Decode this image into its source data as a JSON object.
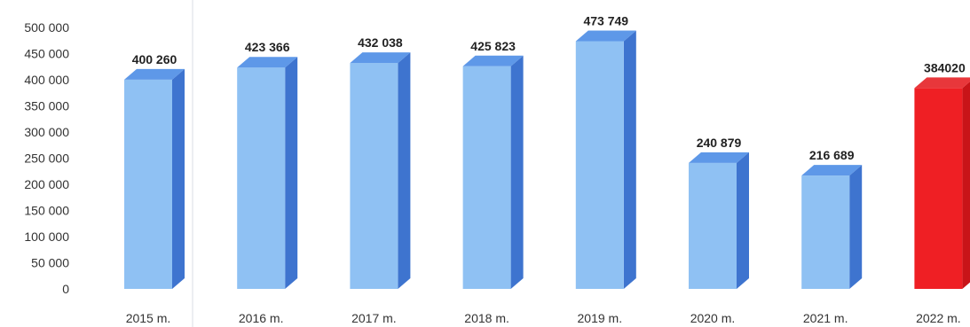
{
  "chart_data": {
    "type": "bar",
    "title": "",
    "xlabel": "",
    "ylabel": "",
    "categories": [
      "2015 m.",
      "2016 m.",
      "2017 m.",
      "2018 m.",
      "2019 m.",
      "2020 m.",
      "2021 m.",
      "2022 m."
    ],
    "values": [
      400260,
      423366,
      432038,
      425823,
      473749,
      240879,
      216689,
      384020
    ],
    "data_labels": [
      "400 260",
      "423 366",
      "432 038",
      "425 823",
      "473 749",
      "240 879",
      "216 689",
      "384020"
    ],
    "ylim": [
      0,
      500000
    ],
    "yticks": [
      0,
      50000,
      100000,
      150000,
      200000,
      250000,
      300000,
      350000,
      400000,
      450000,
      500000
    ],
    "ytick_labels": [
      "0",
      "50 000",
      "100 000",
      "150 000",
      "200 000",
      "250 000",
      "300 000",
      "350 000",
      "400 000",
      "450 000",
      "500 000"
    ],
    "grid": false,
    "legend": "none",
    "style": "3d-bar",
    "colors": {
      "bar_front": "#8fc1f3",
      "bar_side": "#3e74cf",
      "bar_top": "#5e98e8",
      "highlight_front": "#ef1f24",
      "highlight_side": "#c81418",
      "highlight_top": "#e8373b"
    },
    "highlight_index": 7
  }
}
